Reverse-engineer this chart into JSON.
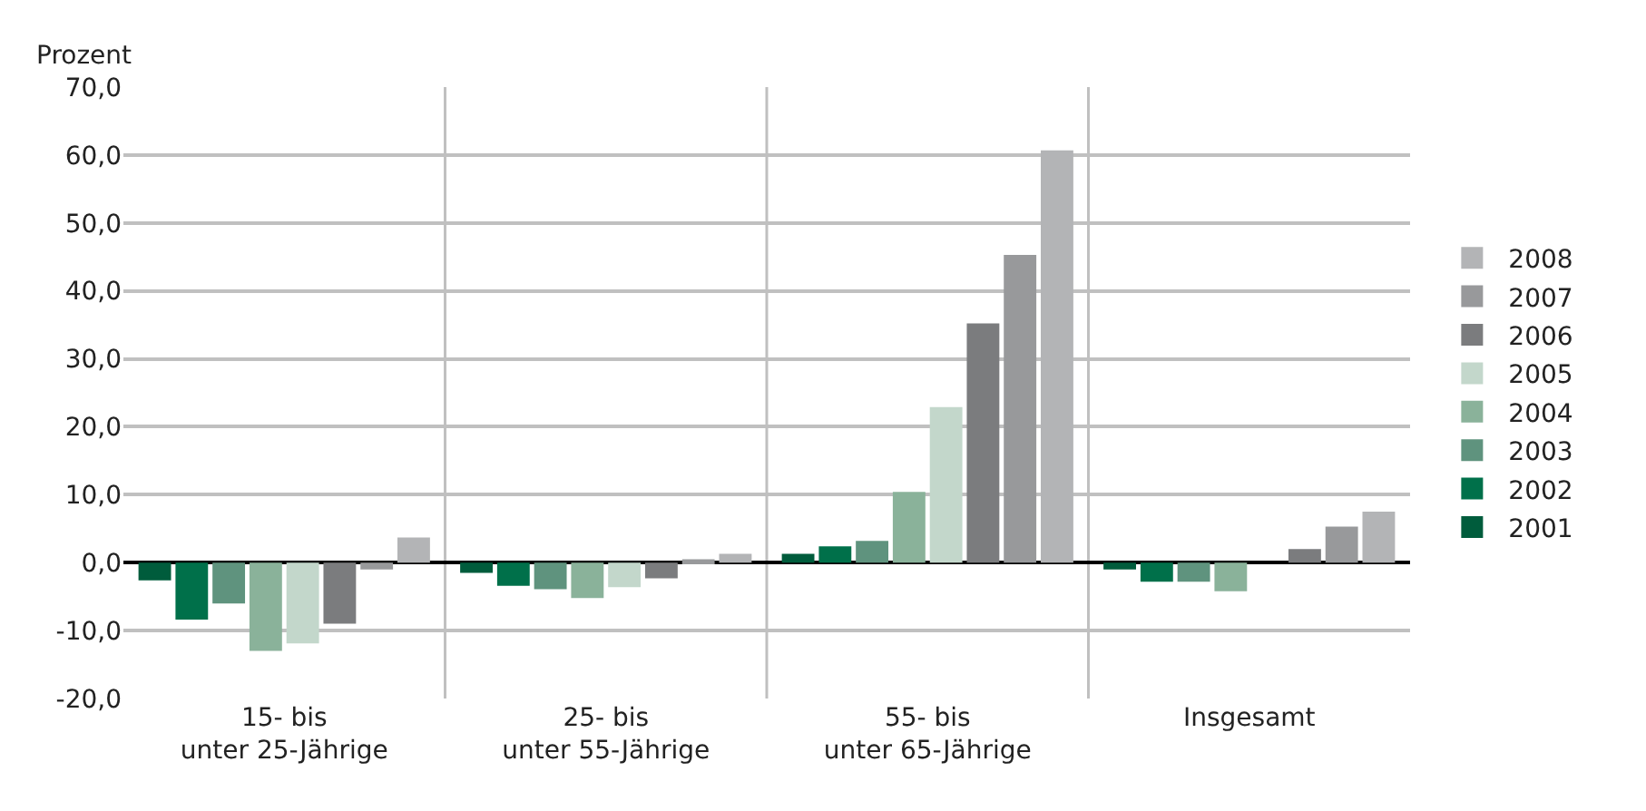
{
  "chart_data": {
    "type": "bar",
    "ylabel": "Prozent",
    "categories": [
      "15- bis\nunter 25-Jährige",
      "25- bis\nunter 55-Jährige",
      "55- bis\nunter 65-Jährige",
      "Insgesamt"
    ],
    "series": [
      {
        "name": "2001",
        "color": "#005c3c",
        "values": [
          -2.6,
          -1.5,
          1.3,
          -1.0
        ]
      },
      {
        "name": "2002",
        "color": "#00704a",
        "values": [
          -8.4,
          -3.4,
          2.4,
          -2.8
        ]
      },
      {
        "name": "2003",
        "color": "#5f937e",
        "values": [
          -6.0,
          -3.9,
          3.2,
          -2.8
        ]
      },
      {
        "name": "2004",
        "color": "#8ab29a",
        "values": [
          -13.0,
          -5.2,
          10.4,
          -4.2
        ]
      },
      {
        "name": "2005",
        "color": "#c3d7cb",
        "values": [
          -11.9,
          -3.6,
          22.9,
          null
        ]
      },
      {
        "name": "2006",
        "color": "#7b7c7e",
        "values": [
          -9.0,
          -2.3,
          35.2,
          2.0
        ]
      },
      {
        "name": "2007",
        "color": "#98999b",
        "values": [
          -1.0,
          0.5,
          45.3,
          5.3
        ]
      },
      {
        "name": "2008",
        "color": "#b3b4b6",
        "values": [
          3.7,
          1.3,
          60.7,
          7.5
        ]
      }
    ],
    "ylim": [
      -20,
      70
    ],
    "yticks": [
      {
        "value": -20,
        "label": "-20,0"
      },
      {
        "value": -10,
        "label": "-10,0"
      },
      {
        "value": 0,
        "label": "0,0"
      },
      {
        "value": 10,
        "label": "10,0"
      },
      {
        "value": 20,
        "label": "20,0"
      },
      {
        "value": 30,
        "label": "30,0"
      },
      {
        "value": 40,
        "label": "40,0"
      },
      {
        "value": 50,
        "label": "50,0"
      },
      {
        "value": 60,
        "label": "60,0"
      },
      {
        "value": 70,
        "label": "70,0"
      }
    ],
    "grid": true,
    "legend": "right"
  }
}
